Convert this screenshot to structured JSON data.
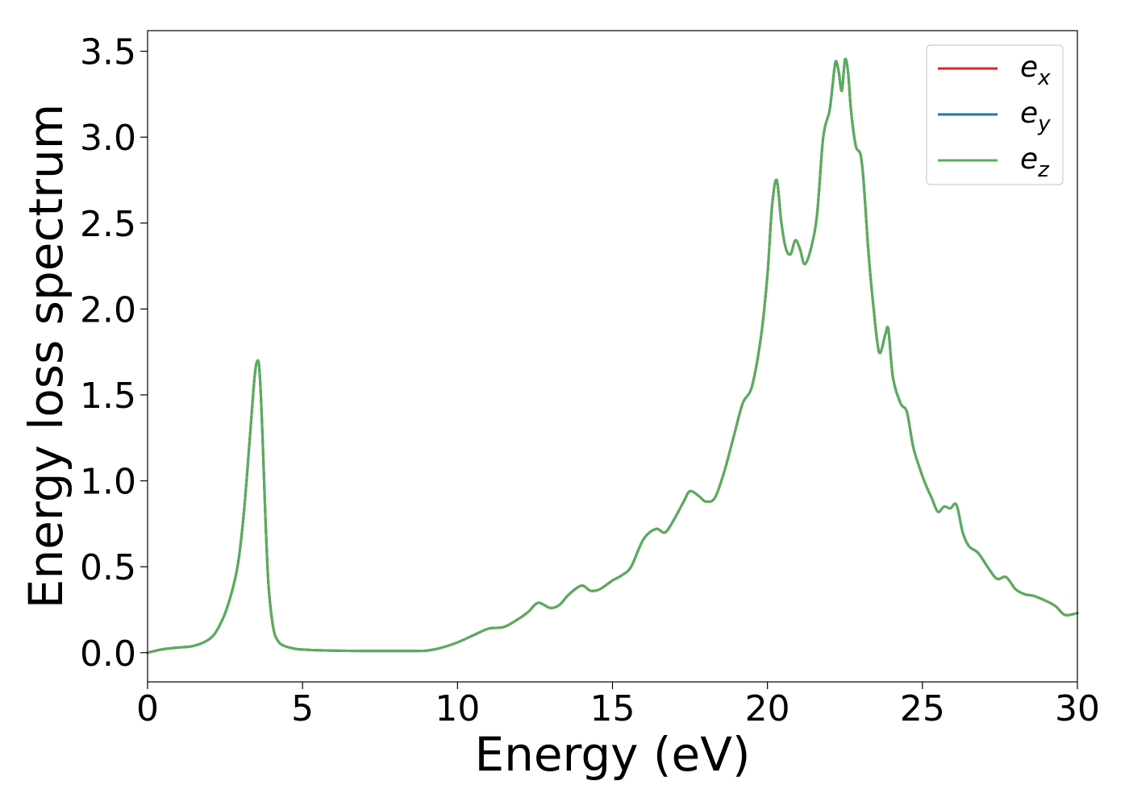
{
  "chart_data": {
    "type": "line",
    "title": "",
    "xlabel": "Energy (eV)",
    "ylabel": "Energy loss spectrum",
    "xlim": [
      0,
      30
    ],
    "ylim": [
      -0.17,
      3.62
    ],
    "xticks": [
      0,
      5,
      10,
      15,
      20,
      25,
      30
    ],
    "xtick_labels": [
      "0",
      "5",
      "10",
      "15",
      "20",
      "25",
      "30"
    ],
    "yticks": [
      0.0,
      0.5,
      1.0,
      1.5,
      2.0,
      2.5,
      3.0,
      3.5
    ],
    "ytick_labels": [
      "0.0",
      "0.5",
      "1.0",
      "1.5",
      "2.0",
      "2.5",
      "3.0",
      "3.5"
    ],
    "grid": false,
    "legend_position": "top-right",
    "series": [
      {
        "label_base": "e",
        "label_sub": "x",
        "color": "#d62728",
        "x": [
          0,
          0.5,
          1,
          1.5,
          2,
          2.3,
          2.6,
          2.9,
          3.1,
          3.3,
          3.45,
          3.55,
          3.62,
          3.7,
          3.8,
          3.9,
          4.05,
          4.2,
          4.4,
          4.7,
          5,
          6,
          7,
          8,
          9,
          9.5,
          10,
          10.5,
          11,
          11.5,
          12,
          12.3,
          12.6,
          13,
          13.3,
          13.6,
          14,
          14.3,
          14.6,
          15,
          15.3,
          15.6,
          16,
          16.4,
          16.7,
          17,
          17.3,
          17.5,
          17.8,
          18,
          18.3,
          18.6,
          18.9,
          19.2,
          19.5,
          19.8,
          20,
          20.15,
          20.3,
          20.45,
          20.6,
          20.75,
          20.9,
          21.05,
          21.2,
          21.4,
          21.6,
          21.8,
          22,
          22.1,
          22.2,
          22.3,
          22.4,
          22.5,
          22.6,
          22.7,
          22.85,
          23,
          23.1,
          23.25,
          23.4,
          23.6,
          23.8,
          23.9,
          24.05,
          24.3,
          24.5,
          24.7,
          24.9,
          25.1,
          25.3,
          25.5,
          25.7,
          25.9,
          26.1,
          26.3,
          26.5,
          26.8,
          27.1,
          27.4,
          27.7,
          28,
          28.3,
          28.6,
          29,
          29.3,
          29.6,
          30
        ],
        "y": [
          0.0,
          0.02,
          0.03,
          0.04,
          0.08,
          0.15,
          0.28,
          0.5,
          0.8,
          1.25,
          1.6,
          1.7,
          1.62,
          1.3,
          0.8,
          0.4,
          0.15,
          0.07,
          0.04,
          0.025,
          0.018,
          0.012,
          0.01,
          0.01,
          0.012,
          0.03,
          0.06,
          0.1,
          0.14,
          0.15,
          0.2,
          0.24,
          0.29,
          0.26,
          0.28,
          0.34,
          0.39,
          0.36,
          0.37,
          0.42,
          0.45,
          0.5,
          0.66,
          0.72,
          0.7,
          0.78,
          0.88,
          0.94,
          0.91,
          0.88,
          0.9,
          1.05,
          1.25,
          1.45,
          1.55,
          1.85,
          2.2,
          2.6,
          2.75,
          2.5,
          2.35,
          2.32,
          2.4,
          2.35,
          2.26,
          2.35,
          2.55,
          3.0,
          3.15,
          3.3,
          3.44,
          3.38,
          3.27,
          3.45,
          3.38,
          3.15,
          2.95,
          2.9,
          2.75,
          2.35,
          2.05,
          1.75,
          1.85,
          1.88,
          1.6,
          1.45,
          1.4,
          1.2,
          1.08,
          0.98,
          0.9,
          0.82,
          0.85,
          0.84,
          0.86,
          0.7,
          0.62,
          0.58,
          0.5,
          0.43,
          0.44,
          0.37,
          0.34,
          0.33,
          0.3,
          0.27,
          0.22,
          0.23
        ]
      },
      {
        "label_base": "e",
        "label_sub": "y",
        "color": "#1f77b4",
        "x": [
          0,
          0.5,
          1,
          1.5,
          2,
          2.3,
          2.6,
          2.9,
          3.1,
          3.3,
          3.45,
          3.55,
          3.62,
          3.7,
          3.8,
          3.9,
          4.05,
          4.2,
          4.4,
          4.7,
          5,
          6,
          7,
          8,
          9,
          9.5,
          10,
          10.5,
          11,
          11.5,
          12,
          12.3,
          12.6,
          13,
          13.3,
          13.6,
          14,
          14.3,
          14.6,
          15,
          15.3,
          15.6,
          16,
          16.4,
          16.7,
          17,
          17.3,
          17.5,
          17.8,
          18,
          18.3,
          18.6,
          18.9,
          19.2,
          19.5,
          19.8,
          20,
          20.15,
          20.3,
          20.45,
          20.6,
          20.75,
          20.9,
          21.05,
          21.2,
          21.4,
          21.6,
          21.8,
          22,
          22.1,
          22.2,
          22.3,
          22.4,
          22.5,
          22.6,
          22.7,
          22.85,
          23,
          23.1,
          23.25,
          23.4,
          23.6,
          23.8,
          23.9,
          24.05,
          24.3,
          24.5,
          24.7,
          24.9,
          25.1,
          25.3,
          25.5,
          25.7,
          25.9,
          26.1,
          26.3,
          26.5,
          26.8,
          27.1,
          27.4,
          27.7,
          28,
          28.3,
          28.6,
          29,
          29.3,
          29.6,
          30
        ],
        "y": [
          0.0,
          0.02,
          0.03,
          0.04,
          0.08,
          0.15,
          0.28,
          0.5,
          0.8,
          1.25,
          1.6,
          1.7,
          1.62,
          1.3,
          0.8,
          0.4,
          0.15,
          0.07,
          0.04,
          0.025,
          0.018,
          0.012,
          0.01,
          0.01,
          0.012,
          0.03,
          0.06,
          0.1,
          0.14,
          0.15,
          0.2,
          0.24,
          0.29,
          0.26,
          0.28,
          0.34,
          0.39,
          0.36,
          0.37,
          0.42,
          0.45,
          0.5,
          0.66,
          0.72,
          0.7,
          0.78,
          0.88,
          0.94,
          0.91,
          0.88,
          0.9,
          1.05,
          1.25,
          1.45,
          1.55,
          1.85,
          2.2,
          2.6,
          2.75,
          2.5,
          2.35,
          2.32,
          2.4,
          2.35,
          2.26,
          2.35,
          2.55,
          3.0,
          3.15,
          3.3,
          3.44,
          3.38,
          3.27,
          3.45,
          3.38,
          3.15,
          2.95,
          2.9,
          2.75,
          2.35,
          2.05,
          1.75,
          1.85,
          1.88,
          1.6,
          1.45,
          1.4,
          1.2,
          1.08,
          0.98,
          0.9,
          0.82,
          0.85,
          0.84,
          0.86,
          0.7,
          0.62,
          0.58,
          0.5,
          0.43,
          0.44,
          0.37,
          0.34,
          0.33,
          0.3,
          0.27,
          0.22,
          0.23
        ]
      },
      {
        "label_base": "e",
        "label_sub": "z",
        "color": "#5aad5a",
        "x": [
          0,
          0.5,
          1,
          1.5,
          2,
          2.3,
          2.6,
          2.9,
          3.1,
          3.3,
          3.45,
          3.55,
          3.62,
          3.7,
          3.8,
          3.9,
          4.05,
          4.2,
          4.4,
          4.7,
          5,
          6,
          7,
          8,
          9,
          9.5,
          10,
          10.5,
          11,
          11.5,
          12,
          12.3,
          12.6,
          13,
          13.3,
          13.6,
          14,
          14.3,
          14.6,
          15,
          15.3,
          15.6,
          16,
          16.4,
          16.7,
          17,
          17.3,
          17.5,
          17.8,
          18,
          18.3,
          18.6,
          18.9,
          19.2,
          19.5,
          19.8,
          20,
          20.15,
          20.3,
          20.45,
          20.6,
          20.75,
          20.9,
          21.05,
          21.2,
          21.4,
          21.6,
          21.8,
          22,
          22.1,
          22.2,
          22.3,
          22.4,
          22.5,
          22.6,
          22.7,
          22.85,
          23,
          23.1,
          23.25,
          23.4,
          23.6,
          23.8,
          23.9,
          24.05,
          24.3,
          24.5,
          24.7,
          24.9,
          25.1,
          25.3,
          25.5,
          25.7,
          25.9,
          26.1,
          26.3,
          26.5,
          26.8,
          27.1,
          27.4,
          27.7,
          28,
          28.3,
          28.6,
          29,
          29.3,
          29.6,
          30
        ],
        "y": [
          0.0,
          0.02,
          0.03,
          0.04,
          0.08,
          0.15,
          0.28,
          0.5,
          0.8,
          1.25,
          1.6,
          1.7,
          1.62,
          1.3,
          0.8,
          0.4,
          0.15,
          0.07,
          0.04,
          0.025,
          0.018,
          0.012,
          0.01,
          0.01,
          0.012,
          0.03,
          0.06,
          0.1,
          0.14,
          0.15,
          0.2,
          0.24,
          0.29,
          0.26,
          0.28,
          0.34,
          0.39,
          0.36,
          0.37,
          0.42,
          0.45,
          0.5,
          0.66,
          0.72,
          0.7,
          0.78,
          0.88,
          0.94,
          0.91,
          0.88,
          0.9,
          1.05,
          1.25,
          1.45,
          1.55,
          1.85,
          2.2,
          2.6,
          2.75,
          2.5,
          2.35,
          2.32,
          2.4,
          2.35,
          2.26,
          2.35,
          2.55,
          3.0,
          3.15,
          3.3,
          3.44,
          3.38,
          3.27,
          3.45,
          3.38,
          3.15,
          2.95,
          2.9,
          2.75,
          2.35,
          2.05,
          1.75,
          1.85,
          1.88,
          1.6,
          1.45,
          1.4,
          1.2,
          1.08,
          0.98,
          0.9,
          0.82,
          0.85,
          0.84,
          0.86,
          0.7,
          0.62,
          0.58,
          0.5,
          0.43,
          0.44,
          0.37,
          0.34,
          0.33,
          0.3,
          0.27,
          0.22,
          0.23
        ]
      }
    ]
  }
}
